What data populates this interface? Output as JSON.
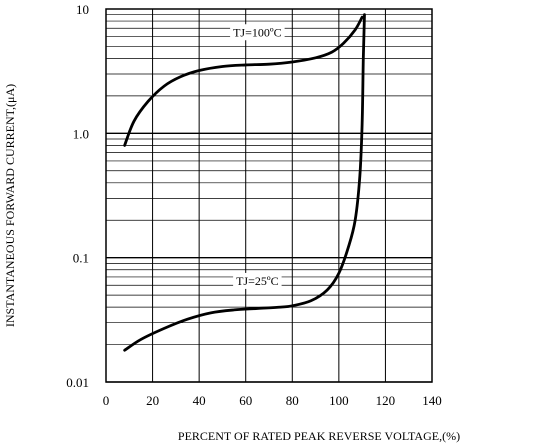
{
  "chart_data": {
    "type": "line",
    "x_scale": "linear",
    "y_scale": "log",
    "xlim": [
      0,
      140
    ],
    "ylim": [
      0.01,
      10
    ],
    "grid": true,
    "xlabel": "PERCENT OF RATED PEAK REVERSE VOLTAGE,(%)",
    "ylabel": "INSTANTANEOUS FORWARD CURRENT,(μA)",
    "x_ticks": [
      {
        "value": 0,
        "label": "0"
      },
      {
        "value": 20,
        "label": "20"
      },
      {
        "value": 40,
        "label": "40"
      },
      {
        "value": 60,
        "label": "60"
      },
      {
        "value": 80,
        "label": "80"
      },
      {
        "value": 100,
        "label": "100"
      },
      {
        "value": 120,
        "label": "120"
      },
      {
        "value": 140,
        "label": "140"
      }
    ],
    "y_ticks": [
      {
        "value": 0.01,
        "label": "0.01"
      },
      {
        "value": 0.1,
        "label": "0.1"
      },
      {
        "value": 1,
        "label": "1.0"
      },
      {
        "value": 10,
        "label": "10"
      }
    ],
    "series": [
      {
        "label_text": "TJ=100ºC",
        "label_at": [
          65,
          6.5
        ],
        "x": [
          8,
          12,
          18,
          25,
          32,
          40,
          50,
          60,
          70,
          80,
          90,
          97,
          102,
          107,
          110
        ],
        "y": [
          0.8,
          1.25,
          1.8,
          2.4,
          2.85,
          3.2,
          3.45,
          3.55,
          3.6,
          3.75,
          4.05,
          4.5,
          5.3,
          6.8,
          8.6
        ]
      },
      {
        "label_text": "TJ=25ºC",
        "label_at": [
          65,
          0.065
        ],
        "x": [
          8,
          15,
          25,
          35,
          45,
          55,
          65,
          75,
          80,
          88,
          95,
          100,
          104,
          107,
          109,
          110,
          110.5,
          111
        ],
        "y": [
          0.018,
          0.022,
          0.027,
          0.032,
          0.036,
          0.038,
          0.039,
          0.04,
          0.041,
          0.045,
          0.055,
          0.075,
          0.12,
          0.2,
          0.45,
          1.2,
          4,
          9
        ]
      }
    ]
  }
}
